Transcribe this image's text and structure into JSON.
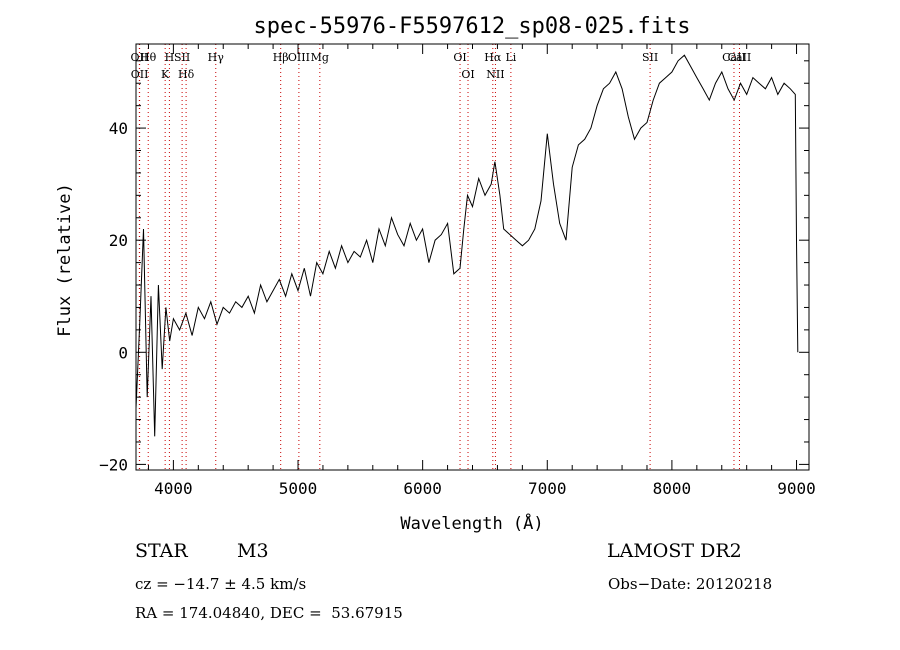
{
  "chart_data": {
    "type": "line",
    "title": "spec-55976-F5597612_sp08-025.fits",
    "xlabel": "Wavelength (Å)",
    "ylabel": "Flux (relative)",
    "xlim": [
      3700,
      9100
    ],
    "ylim": [
      -21,
      55
    ],
    "x_ticks": [
      4000,
      5000,
      6000,
      7000,
      8000,
      9000
    ],
    "y_ticks": [
      -20,
      0,
      20,
      40
    ],
    "x_tick_labels": [
      "4000",
      "5000",
      "6000",
      "7000",
      "8000",
      "9000"
    ],
    "y_tick_labels": [
      "−20",
      "0",
      "20",
      "40"
    ],
    "grid": false,
    "series": [
      {
        "x": [
          3700,
          3730,
          3760,
          3790,
          3820,
          3850,
          3880,
          3910,
          3940,
          3970,
          4000,
          4050,
          4100,
          4150,
          4200,
          4250,
          4300,
          4350,
          4400,
          4450,
          4500,
          4550,
          4600,
          4650,
          4700,
          4750,
          4800,
          4850,
          4900,
          4950,
          5000,
          5050,
          5100,
          5150,
          5200,
          5250,
          5300,
          5350,
          5400,
          5450,
          5500,
          5550,
          5600,
          5650,
          5700,
          5750,
          5800,
          5850,
          5900,
          5950,
          6000,
          6050,
          6100,
          6150,
          6200,
          6250,
          6300,
          6330,
          6360,
          6400,
          6450,
          6500,
          6550,
          6580,
          6620,
          6650,
          6700,
          6750,
          6800,
          6850,
          6900,
          6950,
          7000,
          7050,
          7100,
          7150,
          7200,
          7250,
          7300,
          7350,
          7400,
          7450,
          7500,
          7550,
          7600,
          7650,
          7700,
          7750,
          7800,
          7850,
          7900,
          7950,
          8000,
          8050,
          8100,
          8150,
          8200,
          8250,
          8300,
          8350,
          8400,
          8450,
          8500,
          8550,
          8600,
          8650,
          8700,
          8750,
          8800,
          8850,
          8900,
          8950,
          8990,
          9000,
          9010
        ],
        "y": [
          -10,
          5,
          22,
          -8,
          10,
          -15,
          12,
          -3,
          8,
          2,
          6,
          4,
          7,
          3,
          8,
          6,
          9,
          5,
          8,
          7,
          9,
          8,
          10,
          7,
          12,
          9,
          11,
          13,
          10,
          14,
          11,
          15,
          10,
          16,
          14,
          18,
          15,
          19,
          16,
          18,
          17,
          20,
          16,
          22,
          19,
          24,
          21,
          19,
          23,
          20,
          22,
          16,
          20,
          21,
          23,
          14,
          15,
          22,
          28,
          26,
          31,
          28,
          30,
          34,
          28,
          22,
          21,
          20,
          19,
          20,
          22,
          27,
          39,
          30,
          23,
          20,
          33,
          37,
          38,
          40,
          44,
          47,
          48,
          50,
          47,
          42,
          38,
          40,
          41,
          45,
          48,
          49,
          50,
          52,
          53,
          51,
          49,
          47,
          45,
          48,
          50,
          47,
          45,
          48,
          46,
          49,
          48,
          47,
          49,
          46,
          48,
          47,
          46,
          20,
          0
        ]
      }
    ],
    "line_markers": [
      {
        "label": "Hθ",
        "x": 3798
      },
      {
        "label": "OII",
        "x": 3727
      },
      {
        "label": "OII",
        "x": 3729
      },
      {
        "label": "SII",
        "x": 4070
      },
      {
        "label": "H",
        "x": 3968
      },
      {
        "label": "K",
        "x": 3934
      },
      {
        "label": "Hδ",
        "x": 4102
      },
      {
        "label": "Hγ",
        "x": 4340
      },
      {
        "label": "Hβ",
        "x": 4861
      },
      {
        "label": "OIII",
        "x": 5007
      },
      {
        "label": "Mg",
        "x": 5175
      },
      {
        "label": "OI",
        "x": 6300
      },
      {
        "label": "OI",
        "x": 6364
      },
      {
        "label": "Hα",
        "x": 6563
      },
      {
        "label": "NII",
        "x": 6584
      },
      {
        "label": "Li",
        "x": 6708
      },
      {
        "label": "SII",
        "x": 7825
      },
      {
        "label": "CaII",
        "x": 8498
      },
      {
        "label": "CaII",
        "x": 8542
      }
    ]
  },
  "info": {
    "object_class": "STAR",
    "subclass": "M3",
    "survey": "LAMOST DR2",
    "cz": "cz = −14.7 ± 4.5 km/s",
    "obs_date": "Obs−Date: 20120218",
    "coords": "RA = 174.04840, DEC =  53.67915"
  },
  "colors": {
    "line": "#000000",
    "marker": "#c80000",
    "background": "#ffffff"
  }
}
